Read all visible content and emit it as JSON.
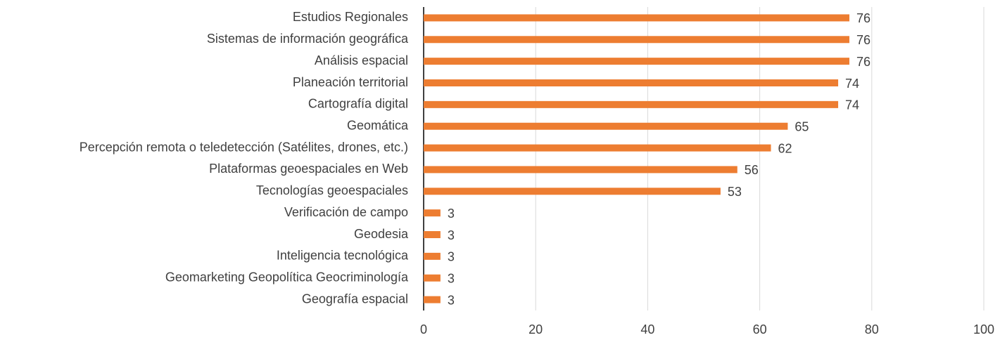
{
  "chart_data": {
    "type": "bar",
    "orientation": "horizontal",
    "categories": [
      "Estudios Regionales",
      "Sistemas de información geográfica",
      "Análisis espacial",
      "Planeación territorial",
      "Cartografía digital",
      "Geomática",
      "Percepción remota o teledetección (Satélites, drones, etc.)",
      "Plataformas geoespaciales en Web",
      "Tecnologías geoespaciales",
      "Verificación de campo",
      "Geodesia",
      "Inteligencia tecnológica",
      "Geomarketing Geopolítica Geocriminología",
      "Geografía espacial"
    ],
    "values": [
      76,
      76,
      76,
      74,
      74,
      65,
      62,
      56,
      53,
      3,
      3,
      3,
      3,
      3
    ],
    "color": "#ed7d31",
    "xlim": [
      0,
      100
    ],
    "xticks": [
      0,
      20,
      40,
      60,
      80,
      100
    ],
    "grid": true
  }
}
